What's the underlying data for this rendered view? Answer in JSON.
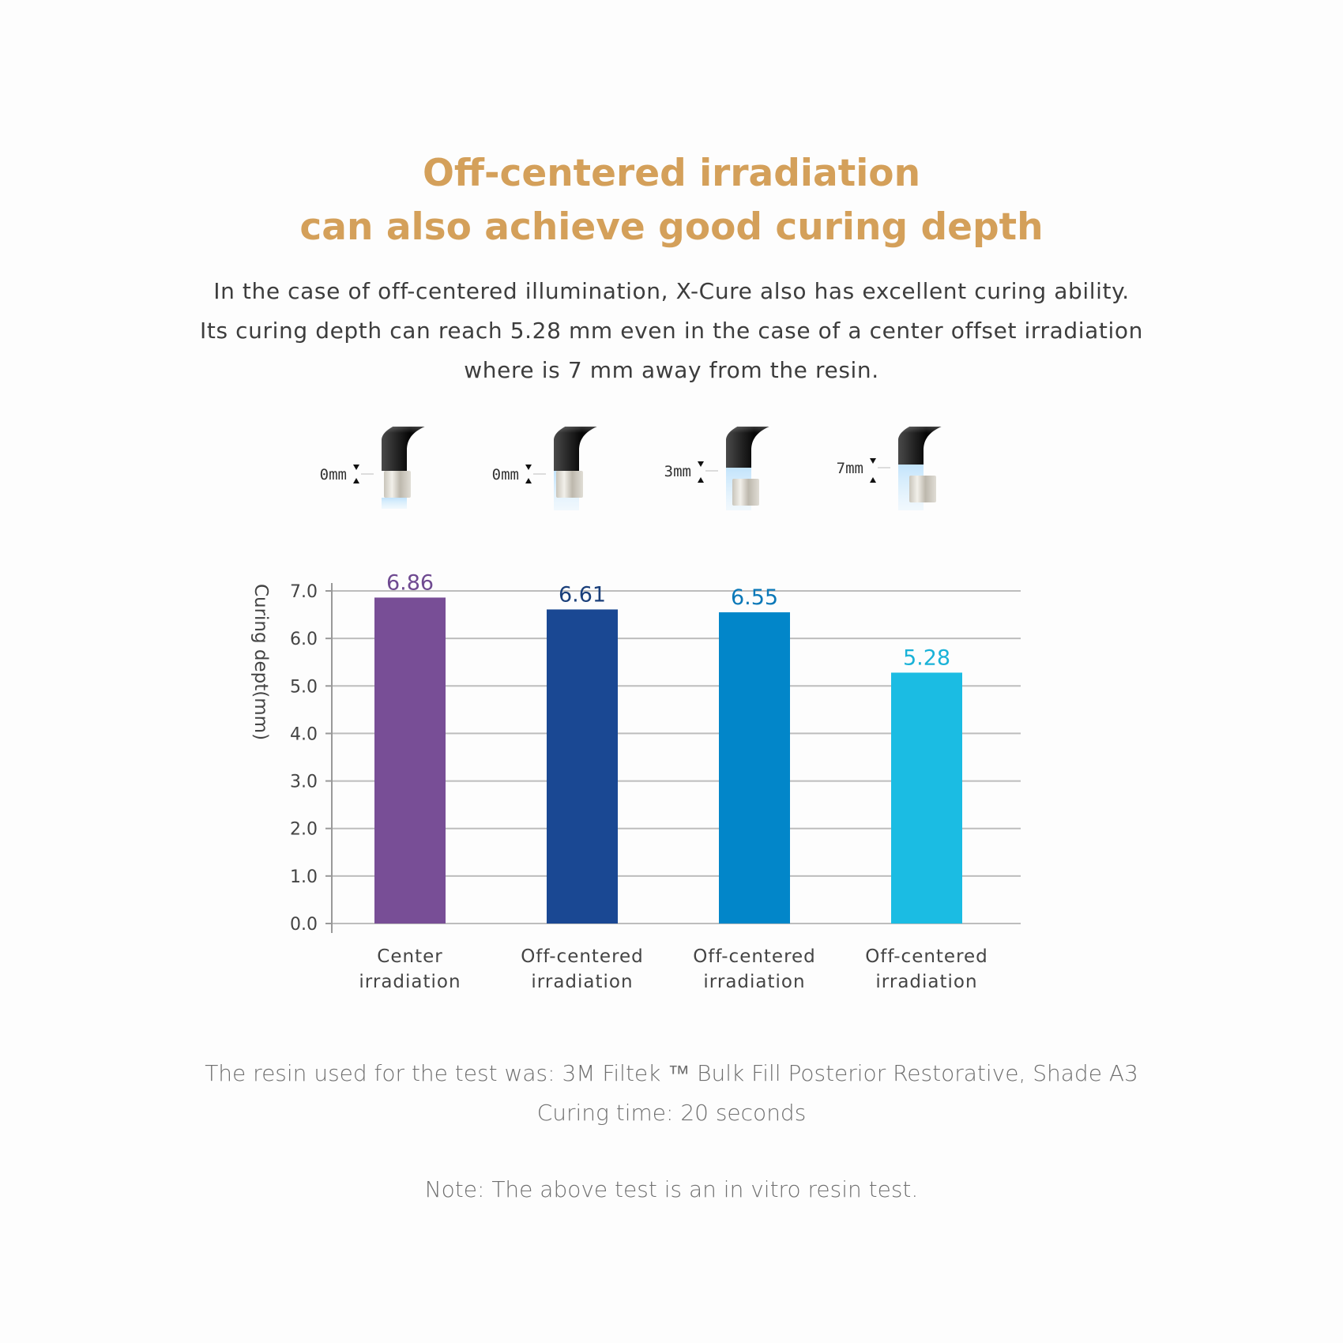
{
  "header": {
    "title_lines": [
      "Off-centered irradiation",
      "can also achieve good curing depth"
    ],
    "description_lines": [
      "In the case of off-centered illumination, X-Cure also has excellent curing ability.",
      "Its curing depth can reach 5.28 mm even in the case of a center offset irradiation",
      "where is 7 mm away from the resin."
    ]
  },
  "chart_data": {
    "type": "bar",
    "categories": [
      [
        "Center",
        "irradiation"
      ],
      [
        "Off-centered",
        "irradiation"
      ],
      [
        "Off-centered",
        "irradiation"
      ],
      [
        "Off-centered",
        "irradiation"
      ]
    ],
    "values": [
      6.86,
      6.61,
      6.55,
      5.28
    ],
    "value_labels": [
      "6.86",
      "6.61",
      "6.55",
      "5.28"
    ],
    "bar_colors": [
      "#784e96",
      "#1a4893",
      "#0286c9",
      "#1bbce3"
    ],
    "label_colors": [
      "#6f4a91",
      "#1a3f7a",
      "#0a78b8",
      "#1ab2d8"
    ],
    "ylabel": "Curing dept(mm)",
    "ylim": [
      0,
      7
    ],
    "yticks": [
      "0.0",
      "1.0",
      "2.0",
      "3.0",
      "4.0",
      "5.0",
      "6.0",
      "7.0"
    ],
    "grid": true,
    "offset_labels": [
      "0mm",
      "0mm",
      "3mm",
      "7mm"
    ],
    "offset_mm": [
      0,
      0,
      3,
      7
    ]
  },
  "footer": {
    "lines": [
      "The resin used for the test was: 3M Filtek ™ Bulk Fill Posterior Restorative, Shade A3",
      "Curing time: 20 seconds"
    ],
    "note": "Note: The above test is an in vitro resin test."
  },
  "colors": {
    "title": "#d4a05a",
    "body_text": "#3d3d3d",
    "footer_text": "#6f6f6f",
    "grid": "#bdbdbd"
  }
}
